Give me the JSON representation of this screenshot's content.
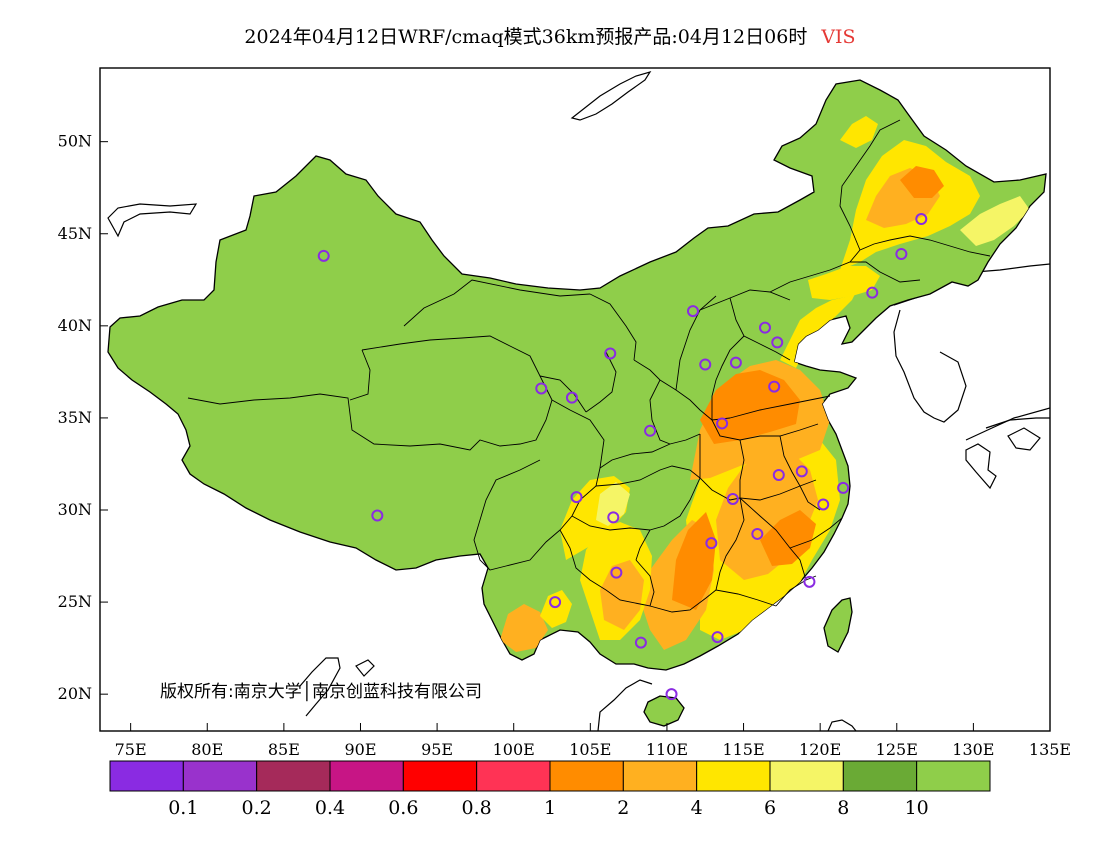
{
  "title": {
    "main": "2024年04月12日WRF/cmaq模式36km预报产品:04月12日06时",
    "variable": "VIS"
  },
  "map": {
    "lon_range": [
      73,
      135
    ],
    "lat_range": [
      18,
      54
    ],
    "x_ticks": [
      "75E",
      "80E",
      "85E",
      "90E",
      "95E",
      "100E",
      "105E",
      "110E",
      "115E",
      "120E",
      "125E",
      "130E",
      "135E"
    ],
    "y_ticks": [
      "20N",
      "25N",
      "30N",
      "35N",
      "40N",
      "45N",
      "50N"
    ],
    "copyright": "版权所有:南京大学│南京创蓝科技有限公司"
  },
  "colorbar": {
    "colors": [
      "#8a2be2",
      "#9932cc",
      "#a52a5a",
      "#c71585",
      "#ff0000",
      "#ff3355",
      "#ff8c00",
      "#ffb020",
      "#ffe600",
      "#f5f566",
      "#6aaa35",
      "#8fce4a"
    ],
    "labels": [
      "0.1",
      "0.2",
      "0.4",
      "0.6",
      "0.8",
      "1",
      "2",
      "4",
      "6",
      "8",
      "10"
    ]
  },
  "colors": {
    "land_good": "#8fce4a",
    "land_dark": "#6aaa35",
    "yellow": "#ffe600",
    "light_yellow": "#f5f566",
    "orange": "#ffb020",
    "dark_orange": "#ff8c00",
    "station_marker": "#8a2be2",
    "title_variable": "#e53935"
  },
  "stations": [
    {
      "lon": 87.6,
      "lat": 43.8
    },
    {
      "lon": 91.1,
      "lat": 29.7
    },
    {
      "lon": 101.8,
      "lat": 36.6
    },
    {
      "lon": 103.8,
      "lat": 36.1
    },
    {
      "lon": 106.3,
      "lat": 38.5
    },
    {
      "lon": 111.7,
      "lat": 40.8
    },
    {
      "lon": 112.5,
      "lat": 37.9
    },
    {
      "lon": 114.5,
      "lat": 38.0
    },
    {
      "lon": 116.4,
      "lat": 39.9
    },
    {
      "lon": 117.2,
      "lat": 39.1
    },
    {
      "lon": 117.0,
      "lat": 36.7
    },
    {
      "lon": 113.6,
      "lat": 34.7
    },
    {
      "lon": 108.9,
      "lat": 34.3
    },
    {
      "lon": 104.1,
      "lat": 30.7
    },
    {
      "lon": 106.5,
      "lat": 29.6
    },
    {
      "lon": 114.3,
      "lat": 30.6
    },
    {
      "lon": 117.3,
      "lat": 31.9
    },
    {
      "lon": 118.8,
      "lat": 32.1
    },
    {
      "lon": 120.2,
      "lat": 30.3
    },
    {
      "lon": 121.5,
      "lat": 31.2
    },
    {
      "lon": 112.9,
      "lat": 28.2
    },
    {
      "lon": 115.9,
      "lat": 28.7
    },
    {
      "lon": 119.3,
      "lat": 26.1
    },
    {
      "lon": 106.7,
      "lat": 26.6
    },
    {
      "lon": 102.7,
      "lat": 25.0
    },
    {
      "lon": 108.3,
      "lat": 22.8
    },
    {
      "lon": 113.3,
      "lat": 23.1
    },
    {
      "lon": 110.3,
      "lat": 20.0
    },
    {
      "lon": 123.4,
      "lat": 41.8
    },
    {
      "lon": 125.3,
      "lat": 43.9
    },
    {
      "lon": 126.6,
      "lat": 45.8
    }
  ]
}
